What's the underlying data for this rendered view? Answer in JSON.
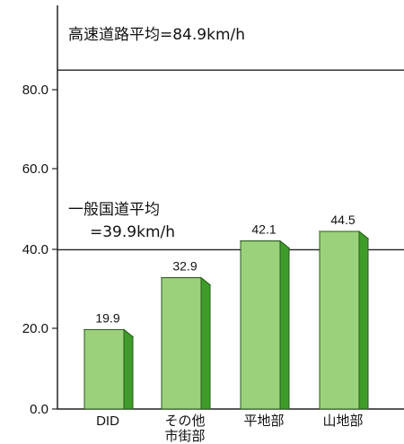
{
  "chart_data": {
    "type": "bar",
    "categories": [
      "DID",
      "その他\n市街部",
      "平地部",
      "山地部"
    ],
    "values": [
      19.9,
      32.9,
      42.1,
      44.5
    ],
    "value_labels": [
      "19.9",
      "32.9",
      "42.1",
      "44.5"
    ],
    "yticks": [
      "0.0",
      "20.0",
      "40.0",
      "60.0",
      "80.0"
    ],
    "ylim": [
      0,
      95
    ],
    "grid": false,
    "bar_color": "#9bd17a",
    "bar_side_color": "#3f9c2a",
    "reference_lines": [
      {
        "value": 84.9,
        "label": "高速道路平均=84.9km/h"
      },
      {
        "value": 39.9,
        "label_line1": "一般国道平均",
        "label_line2": "=39.9km/h"
      }
    ]
  }
}
